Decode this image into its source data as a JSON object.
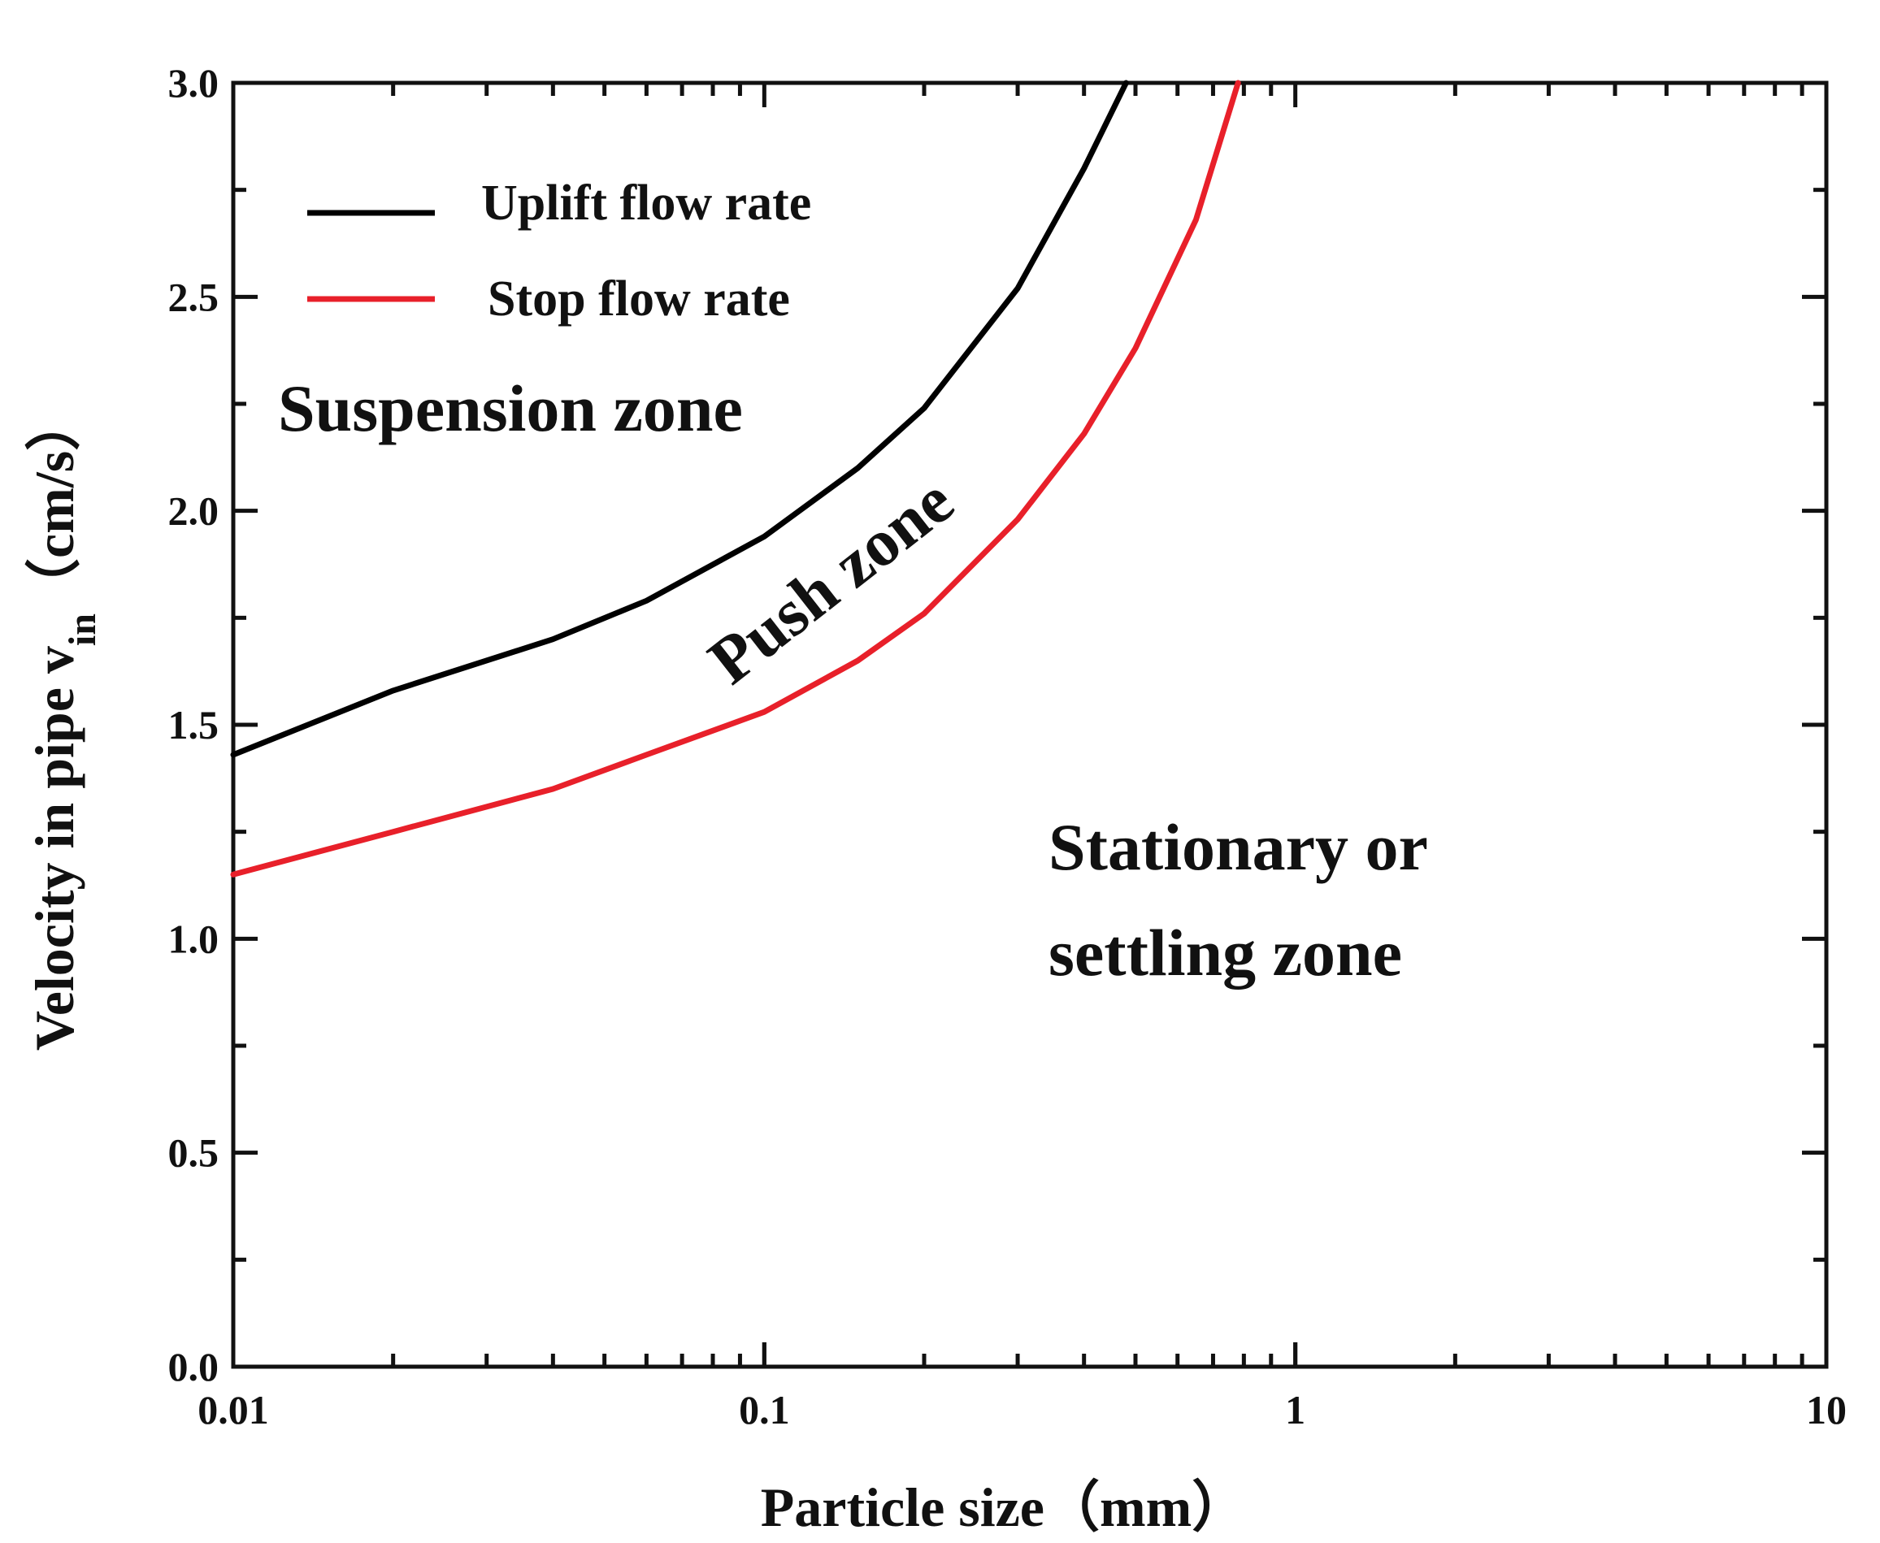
{
  "chart_data": {
    "type": "line",
    "xscale": "log",
    "xlabel": "Particle size（mm）",
    "ylabel_main": "Velocity in pipe v",
    "ylabel_sub": "in",
    "ylabel_unit": "（cm/s）",
    "xlim": [
      0.01,
      10
    ],
    "ylim": [
      0,
      3.0
    ],
    "x_ticks": [
      {
        "value": 0.01,
        "label": "0.01"
      },
      {
        "value": 0.1,
        "label": "0.1"
      },
      {
        "value": 1,
        "label": "1"
      },
      {
        "value": 10,
        "label": "10"
      }
    ],
    "y_ticks": [
      {
        "value": 0.0,
        "label": "0.0"
      },
      {
        "value": 0.5,
        "label": "0.5"
      },
      {
        "value": 1.0,
        "label": "1.0"
      },
      {
        "value": 1.5,
        "label": "1.5"
      },
      {
        "value": 2.0,
        "label": "2.0"
      },
      {
        "value": 2.5,
        "label": "2.5"
      },
      {
        "value": 3.0,
        "label": "3.0"
      }
    ],
    "grid": false,
    "legend_position": "top-left",
    "series": [
      {
        "name": "Uplift flow rate",
        "color": "#000000",
        "x": [
          0.01,
          0.02,
          0.04,
          0.06,
          0.1,
          0.15,
          0.2,
          0.3,
          0.4,
          0.48
        ],
        "y": [
          1.43,
          1.58,
          1.7,
          1.79,
          1.94,
          2.1,
          2.24,
          2.52,
          2.8,
          3.0
        ]
      },
      {
        "name": "Stop flow rate",
        "color": "#e8202a",
        "x": [
          0.01,
          0.02,
          0.04,
          0.06,
          0.1,
          0.15,
          0.2,
          0.3,
          0.4,
          0.5,
          0.65,
          0.78
        ],
        "y": [
          1.15,
          1.25,
          1.35,
          1.43,
          1.53,
          1.65,
          1.76,
          1.98,
          2.18,
          2.38,
          2.68,
          3.0
        ]
      }
    ],
    "annotations": {
      "suspension": "Suspension zone",
      "push": "Push zone",
      "stationary_line1": "Stationary or",
      "stationary_line2": "settling zone"
    }
  }
}
